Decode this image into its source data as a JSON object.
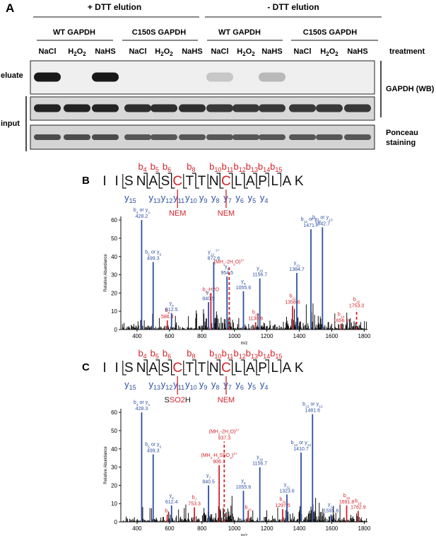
{
  "panelA": {
    "label": "A",
    "groups": [
      "+ DTT elution",
      "- DTT elution"
    ],
    "proteins": [
      "WT GAPDH",
      "C150S GAPDH",
      "WT GAPDH",
      "C150S GAPDH"
    ],
    "lanes": [
      "NaCl",
      "H2O2",
      "NaHS",
      "NaCl",
      "H2O2",
      "NaHS",
      "NaCl",
      "H2O2",
      "NaHS",
      "NaCl",
      "H2O2",
      "NaHS"
    ],
    "treatment_label": "treatment",
    "row_labels": [
      "eluate",
      "input"
    ],
    "right_labels": [
      "GAPDH (WB)",
      "Ponceau",
      "staining"
    ],
    "eluate_intensity": [
      1.0,
      0,
      1.0,
      0,
      0,
      0,
      0.15,
      0,
      0.22,
      0,
      0,
      0
    ],
    "input_intensity": [
      0.95,
      0.95,
      0.95,
      0.9,
      0.9,
      0.9,
      0.85,
      0.85,
      0.85,
      0.85,
      0.85,
      0.85
    ],
    "ponceau_intensity": [
      0.75,
      0.75,
      0.75,
      0.7,
      0.7,
      0.7,
      0.7,
      0.7,
      0.7,
      0.7,
      0.7,
      0.7
    ]
  },
  "chart_data": [
    {
      "type": "bar",
      "panel": "B",
      "peptide": [
        "I",
        "I",
        "S",
        "N",
        "A",
        "S",
        "C",
        "T",
        "T",
        "N",
        "C",
        "L",
        "A",
        "P",
        "L",
        "A",
        "K"
      ],
      "b_ions_top": [
        "4",
        "5",
        "6",
        "8",
        "10",
        "11",
        "12",
        "13",
        "14",
        "15"
      ],
      "y_ions_bottom": [
        "15",
        "13",
        "12",
        "11",
        "10",
        "9",
        "8",
        "7",
        "6",
        "5",
        "4"
      ],
      "modifications": [
        "NEM",
        "NEM"
      ],
      "xlabel": "m/z",
      "ylabel": "Relative Abundance",
      "xlim": [
        300,
        1820
      ],
      "ylim": [
        0,
        62
      ],
      "xticks": [
        400,
        600,
        800,
        1000,
        1200,
        1400,
        1600,
        1800
      ],
      "yticks": [
        0,
        10,
        20,
        30,
        40,
        50,
        60
      ],
      "peaks": [
        {
          "mz": 428.2,
          "intensity": 60,
          "color": "blue",
          "label": [
            "b4 or y4",
            "428.2"
          ]
        },
        {
          "mz": 499.3,
          "intensity": 37,
          "color": "blue",
          "label": [
            "b5 or y5",
            "499.3"
          ]
        },
        {
          "mz": 586.4,
          "intensity": 5,
          "color": "red",
          "label": [
            "b6",
            "586.4"
          ]
        },
        {
          "mz": 612.5,
          "intensity": 9,
          "color": "blue",
          "label": [
            "y6",
            "612.5"
          ]
        },
        {
          "mz": 840.5,
          "intensity": 15,
          "color": "blue",
          "label": [
            "y7",
            "840.5"
          ]
        },
        {
          "mz": 855.0,
          "intensity": 20,
          "color": "red",
          "label": [
            "b6-H2O"
          ]
        },
        {
          "mz": 872.6,
          "intensity": 37,
          "color": "blue",
          "label": [
            "y12 2+",
            "872.6"
          ]
        },
        {
          "mz": 954.5,
          "intensity": 29,
          "color": "blue",
          "label": [
            "y8",
            "954.5"
          ]
        },
        {
          "mz": 968.0,
          "intensity": 35,
          "color": "red",
          "dashed": true,
          "label": [
            "(MH2-2H2O)2+"
          ]
        },
        {
          "mz": 1055.6,
          "intensity": 21,
          "color": "blue",
          "label": [
            "y9",
            "1055.6"
          ]
        },
        {
          "mz": 1130.6,
          "intensity": 4,
          "color": "red",
          "label": [
            "b10",
            "1130.6"
          ]
        },
        {
          "mz": 1156.7,
          "intensity": 28,
          "color": "blue",
          "label": [
            "y10",
            "1156.7"
          ]
        },
        {
          "mz": 1358.6,
          "intensity": 13,
          "color": "red",
          "label": [
            "b11",
            "1358.6"
          ]
        },
        {
          "mz": 1384.7,
          "intensity": 31,
          "color": "blue",
          "label": [
            "y11",
            "1384.7"
          ]
        },
        {
          "mz": 1471.7,
          "intensity": 55,
          "color": "blue",
          "label": [
            "b12 or y12",
            "1471.7"
          ]
        },
        {
          "mz": 1542.7,
          "intensity": 56,
          "color": "blue",
          "label": [
            "b13 or y13",
            "1542.7"
          ]
        },
        {
          "mz": 1656.9,
          "intensity": 3,
          "color": "red",
          "label": [
            "b14",
            "1656.9"
          ]
        },
        {
          "mz": 1753.0,
          "intensity": 11,
          "color": "red",
          "dashed": true,
          "label": [
            "b15",
            "1753.0"
          ]
        }
      ]
    },
    {
      "type": "bar",
      "panel": "C",
      "peptide": [
        "I",
        "I",
        "S",
        "N",
        "A",
        "S",
        "C",
        "T",
        "T",
        "N",
        "C",
        "L",
        "A",
        "P",
        "L",
        "A",
        "K"
      ],
      "b_ions_top": [
        "4",
        "5",
        "6",
        "8",
        "10",
        "11",
        "12",
        "13",
        "14",
        "15"
      ],
      "y_ions_bottom": [
        "15",
        "13",
        "12",
        "11",
        "10",
        "9",
        "8",
        "7",
        "6",
        "5",
        "4"
      ],
      "modifications": [
        "SSO2H",
        "NEM"
      ],
      "xlabel": "m/z",
      "ylabel": "Relative Abundance",
      "xlim": [
        300,
        1820
      ],
      "ylim": [
        0,
        62
      ],
      "xticks": [
        400,
        600,
        800,
        1000,
        1200,
        1400,
        1600,
        1800
      ],
      "yticks": [
        0,
        10,
        20,
        30,
        40,
        50,
        60
      ],
      "peaks": [
        {
          "mz": 428.3,
          "intensity": 60,
          "color": "blue",
          "label": [
            "b4 or y4",
            "428.3"
          ]
        },
        {
          "mz": 499.3,
          "intensity": 37,
          "color": "blue",
          "label": [
            "b5 or y5",
            "499.3"
          ]
        },
        {
          "mz": 586.0,
          "intensity": 4,
          "color": "red",
          "label": [
            "b6"
          ]
        },
        {
          "mz": 612.4,
          "intensity": 9,
          "color": "blue",
          "label": [
            "y6",
            "612.4"
          ]
        },
        {
          "mz": 753.3,
          "intensity": 8,
          "color": "red",
          "label": [
            "b7",
            "753.3"
          ]
        },
        {
          "mz": 840.5,
          "intensity": 20,
          "color": "blue",
          "label": [
            "y7",
            "840.5"
          ]
        },
        {
          "mz": 906.1,
          "intensity": 31,
          "color": "red",
          "label": [
            "(MH2-H2SSO2)2+",
            "906.1"
          ]
        },
        {
          "mz": 937.3,
          "intensity": 44,
          "color": "red",
          "dashed": true,
          "label": [
            "(MH2-2H2O)2+",
            "937.3"
          ]
        },
        {
          "mz": 1055.6,
          "intensity": 17,
          "color": "blue",
          "label": [
            "y8",
            "1055.6"
          ]
        },
        {
          "mz": 1085.0,
          "intensity": 6,
          "color": "red",
          "label": [
            "b10"
          ]
        },
        {
          "mz": 1156.7,
          "intensity": 30,
          "color": "blue",
          "label": [
            "y10",
            "1156.7"
          ]
        },
        {
          "mz": 1297.5,
          "intensity": 7,
          "color": "red",
          "label": [
            "b11",
            "1297.5"
          ]
        },
        {
          "mz": 1323.6,
          "intensity": 15,
          "color": "blue",
          "label": [
            "y11",
            "1323.6"
          ]
        },
        {
          "mz": 1410.7,
          "intensity": 38,
          "color": "blue",
          "label": [
            "b12 or y12",
            "1410.7"
          ]
        },
        {
          "mz": 1481.6,
          "intensity": 59,
          "color": "blue",
          "label": [
            "b13 or y13",
            "1481.6"
          ]
        },
        {
          "mz": 1595.6,
          "intensity": 4,
          "color": "blue",
          "label": [
            "y14",
            "1595.6"
          ]
        },
        {
          "mz": 1691.8,
          "intensity": 9,
          "color": "red",
          "label": [
            "b15",
            "1691.8"
          ]
        },
        {
          "mz": 1762.9,
          "intensity": 6,
          "color": "red",
          "label": [
            "b16",
            "1762.9"
          ]
        }
      ]
    }
  ],
  "colors": {
    "blue": "#2c4fa3",
    "red": "#d2232a",
    "black": "#111111"
  }
}
